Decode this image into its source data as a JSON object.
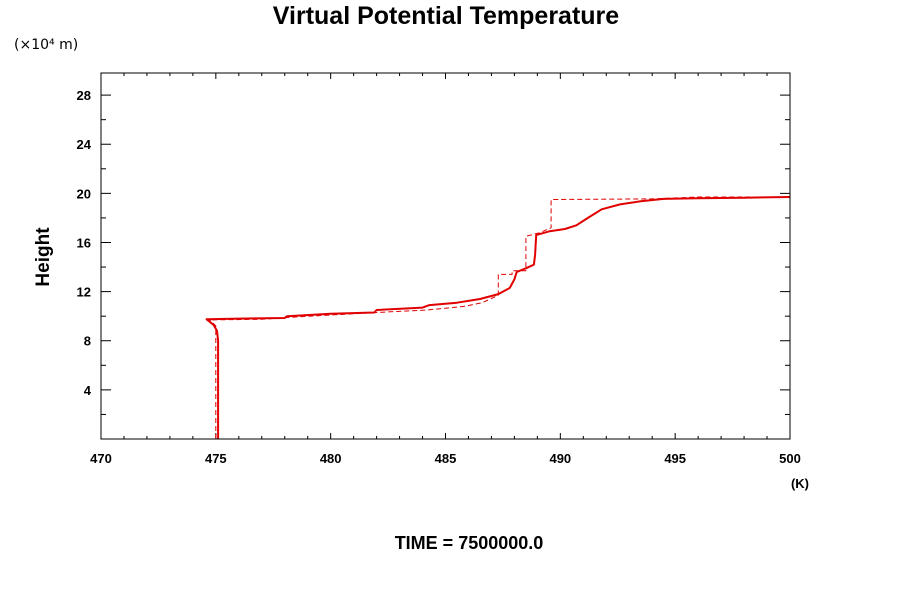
{
  "chart_data": {
    "type": "line",
    "title": "Virtual Potential Temperature",
    "y_unit_label": "(×10⁴ m)",
    "ylabel": "Height",
    "xlabel": "(K)",
    "footer": "TIME = 7500000.0",
    "xlim": [
      470,
      500
    ],
    "ylim": [
      0,
      29.8
    ],
    "x_ticks": [
      470,
      475,
      480,
      485,
      490,
      495,
      500
    ],
    "y_ticks": [
      4,
      8,
      12,
      16,
      20,
      24,
      28
    ],
    "grid": false,
    "series": [
      {
        "style": "solid",
        "color": "#e00000",
        "points": [
          [
            475.1,
            0.0
          ],
          [
            475.1,
            8.0
          ],
          [
            475.05,
            8.8
          ],
          [
            474.9,
            9.3
          ],
          [
            474.7,
            9.6
          ],
          [
            474.6,
            9.75
          ],
          [
            476.0,
            9.8
          ],
          [
            478.0,
            9.85
          ],
          [
            478.1,
            10.0
          ],
          [
            480.0,
            10.2
          ],
          [
            481.9,
            10.3
          ],
          [
            482.0,
            10.5
          ],
          [
            484.0,
            10.7
          ],
          [
            484.3,
            10.9
          ],
          [
            485.5,
            11.1
          ],
          [
            486.5,
            11.4
          ],
          [
            487.3,
            11.8
          ],
          [
            487.8,
            12.3
          ],
          [
            488.0,
            13.0
          ],
          [
            488.1,
            13.6
          ],
          [
            488.5,
            13.9
          ],
          [
            488.85,
            14.2
          ],
          [
            488.9,
            15.0
          ],
          [
            488.95,
            16.6
          ],
          [
            489.5,
            16.9
          ],
          [
            490.2,
            17.1
          ],
          [
            490.7,
            17.4
          ],
          [
            491.2,
            18.0
          ],
          [
            491.8,
            18.7
          ],
          [
            492.6,
            19.1
          ],
          [
            493.5,
            19.35
          ],
          [
            494.5,
            19.55
          ],
          [
            496.0,
            19.6
          ],
          [
            498.0,
            19.65
          ],
          [
            500.0,
            19.7
          ]
        ]
      },
      {
        "style": "dashed",
        "color": "#e00000",
        "points": [
          [
            475.0,
            0.0
          ],
          [
            475.0,
            9.2
          ],
          [
            474.8,
            9.6
          ],
          [
            474.65,
            9.7
          ],
          [
            477.0,
            9.75
          ],
          [
            478.2,
            9.9
          ],
          [
            480.0,
            10.1
          ],
          [
            482.0,
            10.3
          ],
          [
            484.2,
            10.5
          ],
          [
            485.8,
            10.8
          ],
          [
            486.6,
            11.1
          ],
          [
            487.3,
            11.7
          ],
          [
            487.3,
            13.4
          ],
          [
            487.9,
            13.4
          ],
          [
            487.9,
            13.7
          ],
          [
            488.5,
            13.7
          ],
          [
            488.5,
            16.5
          ],
          [
            489.1,
            16.8
          ],
          [
            489.6,
            17.2
          ],
          [
            489.6,
            19.5
          ],
          [
            494.0,
            19.55
          ],
          [
            496.0,
            19.7
          ],
          [
            500.0,
            19.7
          ]
        ]
      }
    ]
  }
}
